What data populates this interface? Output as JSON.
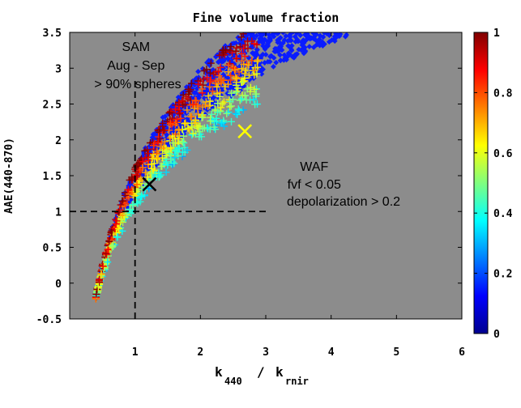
{
  "chart_data": {
    "type": "scatter",
    "title": "Fine volume fraction",
    "xlabel_main": "k",
    "xlabel_sub1": "440",
    "xlabel_sep": "/",
    "xlabel_sub2": "rnir",
    "ylabel": "AAE(440-870)",
    "xlim": [
      0,
      6
    ],
    "ylim": [
      -0.5,
      3.5
    ],
    "xticks": [
      "1",
      "2",
      "3",
      "4",
      "5",
      "6"
    ],
    "yticks": [
      "-0.5",
      "0",
      "0.5",
      "1",
      "1.5",
      "2",
      "2.5",
      "3",
      "3.5"
    ],
    "grid": false,
    "background_color": "#8c8c8c",
    "colorbar": {
      "label_values": [
        0,
        0.2,
        0.4,
        0.6,
        0.8,
        1
      ],
      "labels": [
        "0",
        "0.2",
        "0.4",
        "0.6",
        "0.8",
        "1"
      ],
      "colormap": "jet"
    },
    "reference_lines": {
      "vertical_x": 1.0,
      "vertical_ymax": 2.85,
      "horizontal_y": 1.0,
      "horizontal_xmax": 3.0
    },
    "series": [
      {
        "marker": "plus",
        "color_by": "fine volume fraction",
        "envelope": {
          "x_from": 0.4,
          "x_to": 2.9,
          "a_lo": 1.35,
          "a_hi": 1.95,
          "curve": "log"
        },
        "count": 650
      },
      {
        "marker": "diamond",
        "color": "#0a1cff",
        "envelope": {
          "x_from": 0.4,
          "x_to": 6.0,
          "a_lo": 1.55,
          "a_hi": 1.97,
          "curve": "log"
        },
        "count": 1700
      }
    ],
    "highlight_points": [
      {
        "x": 1.22,
        "y": 1.38,
        "marker": "cross",
        "color": "#000000"
      },
      {
        "x": 2.68,
        "y": 2.12,
        "marker": "cross",
        "color": "#ffff00"
      }
    ],
    "annotations": {
      "sam_line1": "SAM",
      "sam_line2": "Aug - Sep",
      "sam_line3": "> 90% spheres",
      "waf_line1": "WAF",
      "waf_line2": "fvf < 0.05",
      "waf_line3": "depolarization > 0.2"
    }
  }
}
